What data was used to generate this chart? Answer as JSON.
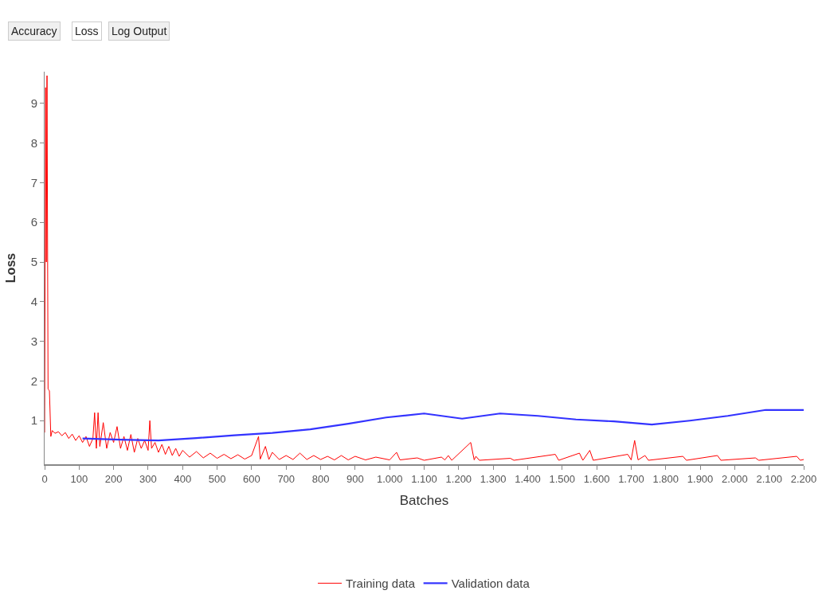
{
  "chart_data": {
    "type": "line",
    "xlabel": "Batches",
    "ylabel": "Loss",
    "annotations": [
      "Accuracy",
      "Loss",
      "Log Output"
    ],
    "xlim": [
      0,
      2200
    ],
    "ylim": [
      -0.1,
      9.8
    ],
    "xticks": [
      0,
      100,
      200,
      300,
      400,
      500,
      600,
      700,
      800,
      900,
      {
        "value": 1000,
        "label": "1.000"
      },
      {
        "value": 1100,
        "label": "1.100"
      },
      {
        "value": 1200,
        "label": "1.200"
      },
      {
        "value": 1300,
        "label": "1.300"
      },
      {
        "value": 1400,
        "label": "1.400"
      },
      {
        "value": 1500,
        "label": "1.500"
      },
      {
        "value": 1600,
        "label": "1.600"
      },
      {
        "value": 1700,
        "label": "1.700"
      },
      {
        "value": 1800,
        "label": "1.800"
      },
      {
        "value": 1900,
        "label": "1.900"
      },
      {
        "value": 2000,
        "label": "2.000"
      },
      {
        "value": 2100,
        "label": "2.100"
      },
      {
        "value": 2200,
        "label": "2.200"
      }
    ],
    "yticks": [
      1,
      2,
      3,
      4,
      5,
      6,
      7,
      8,
      9
    ],
    "legend": "bottom",
    "marker": "none",
    "line_style": "solid",
    "series": [
      {
        "name": "Training data",
        "color": "#ff0000",
        "x": [
          0,
          3,
          5,
          7,
          10,
          14,
          18,
          22,
          30,
          40,
          50,
          60,
          70,
          80,
          90,
          100,
          110,
          120,
          130,
          140,
          145,
          150,
          155,
          160,
          170,
          180,
          190,
          200,
          210,
          220,
          230,
          240,
          250,
          260,
          270,
          280,
          290,
          300,
          305,
          310,
          320,
          330,
          340,
          350,
          360,
          370,
          380,
          390,
          400,
          420,
          440,
          460,
          480,
          500,
          520,
          540,
          560,
          580,
          600,
          620,
          625,
          640,
          650,
          660,
          680,
          700,
          720,
          740,
          760,
          780,
          800,
          820,
          840,
          860,
          880,
          900,
          930,
          960,
          1000,
          1020,
          1030,
          1080,
          1100,
          1150,
          1160,
          1170,
          1180,
          1235,
          1245,
          1250,
          1260,
          1350,
          1360,
          1480,
          1490,
          1550,
          1560,
          1580,
          1590,
          1690,
          1700,
          1710,
          1720,
          1740,
          1750,
          1850,
          1860,
          1950,
          1960,
          2060,
          2070,
          2180,
          2190,
          2200
        ],
        "values": [
          0.7,
          9.4,
          5.0,
          9.7,
          1.8,
          1.75,
          0.6,
          0.75,
          0.68,
          0.72,
          0.62,
          0.7,
          0.55,
          0.66,
          0.5,
          0.62,
          0.45,
          0.6,
          0.35,
          0.55,
          1.2,
          0.3,
          1.2,
          0.35,
          0.95,
          0.3,
          0.7,
          0.45,
          0.85,
          0.3,
          0.6,
          0.25,
          0.65,
          0.2,
          0.55,
          0.3,
          0.5,
          0.25,
          1.0,
          0.3,
          0.45,
          0.2,
          0.4,
          0.15,
          0.35,
          0.12,
          0.3,
          0.1,
          0.25,
          0.08,
          0.22,
          0.06,
          0.18,
          0.05,
          0.15,
          0.04,
          0.14,
          0.03,
          0.12,
          0.6,
          0.03,
          0.35,
          0.02,
          0.2,
          0.02,
          0.12,
          0.02,
          0.18,
          0.02,
          0.12,
          0.02,
          0.1,
          0.01,
          0.12,
          0.01,
          0.1,
          0.01,
          0.08,
          0.01,
          0.2,
          0.01,
          0.06,
          0.0,
          0.08,
          0.01,
          0.12,
          0.0,
          0.45,
          0.01,
          0.1,
          0.0,
          0.05,
          0.0,
          0.15,
          0.0,
          0.18,
          0.0,
          0.25,
          0.0,
          0.15,
          0.01,
          0.5,
          0.01,
          0.12,
          0.0,
          0.1,
          0.0,
          0.12,
          0.0,
          0.06,
          0.0,
          0.1,
          0.0,
          0.02
        ]
      },
      {
        "name": "Validation data",
        "color": "#3333ff",
        "x": [
          110,
          220,
          330,
          440,
          550,
          660,
          770,
          880,
          990,
          1100,
          1210,
          1320,
          1430,
          1540,
          1650,
          1760,
          1870,
          1980,
          2090,
          2200
        ],
        "values": [
          0.55,
          0.52,
          0.5,
          0.56,
          0.63,
          0.69,
          0.78,
          0.92,
          1.08,
          1.18,
          1.05,
          1.18,
          1.12,
          1.03,
          0.98,
          0.9,
          1.0,
          1.12,
          1.27,
          1.27
        ]
      }
    ]
  }
}
